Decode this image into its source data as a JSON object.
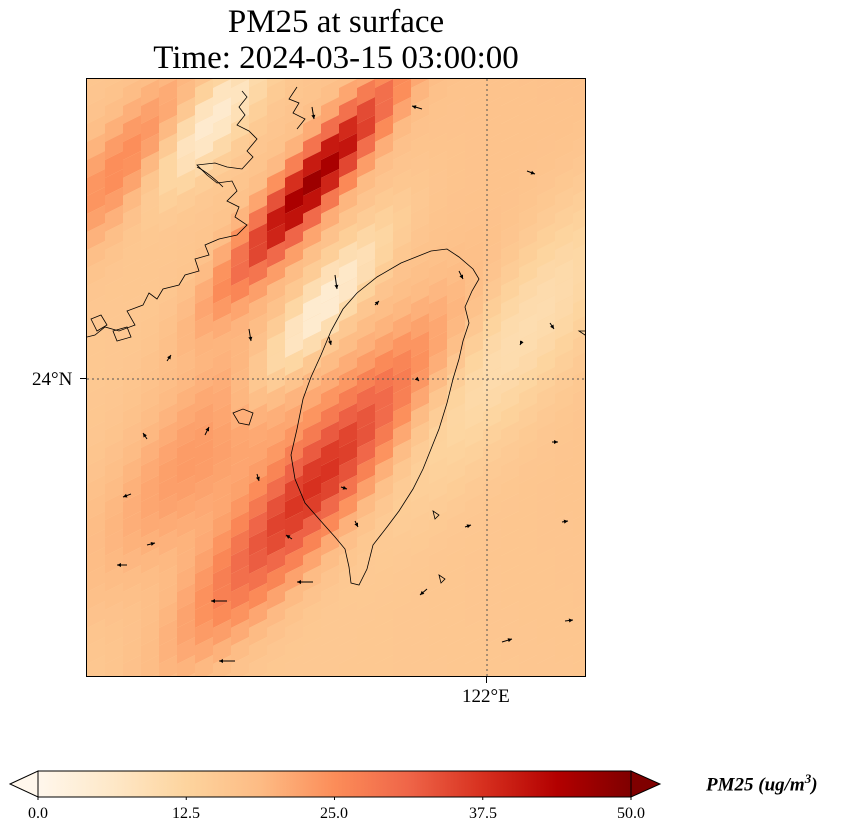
{
  "title": {
    "line1": "PM25 at surface",
    "line2": "Time: 2024-03-15 03:00:00"
  },
  "axes": {
    "lat_label": "24°N",
    "lon_label": "122°E"
  },
  "colorbar": {
    "min": 0.0,
    "max": 50.0,
    "extend": "both",
    "colormap": "OrRd",
    "colors": [
      "#fff7ec",
      "#fee8c8",
      "#fdd49e",
      "#fdbb84",
      "#fc8d59",
      "#ef6548",
      "#d7301f",
      "#b30000",
      "#7f0000"
    ],
    "ticks": [
      "0.0",
      "12.5",
      "25.0",
      "37.5",
      "50.0"
    ],
    "label_main": "PM25 (ug/m",
    "label_sup": "3",
    "label_end": ")"
  },
  "map": {
    "features": [
      "coastline",
      "Taiwan island",
      "China coast",
      "wind vectors",
      "lat/lon gridlines"
    ],
    "gridlines": "dotted",
    "wind_vectors": "shown"
  }
}
